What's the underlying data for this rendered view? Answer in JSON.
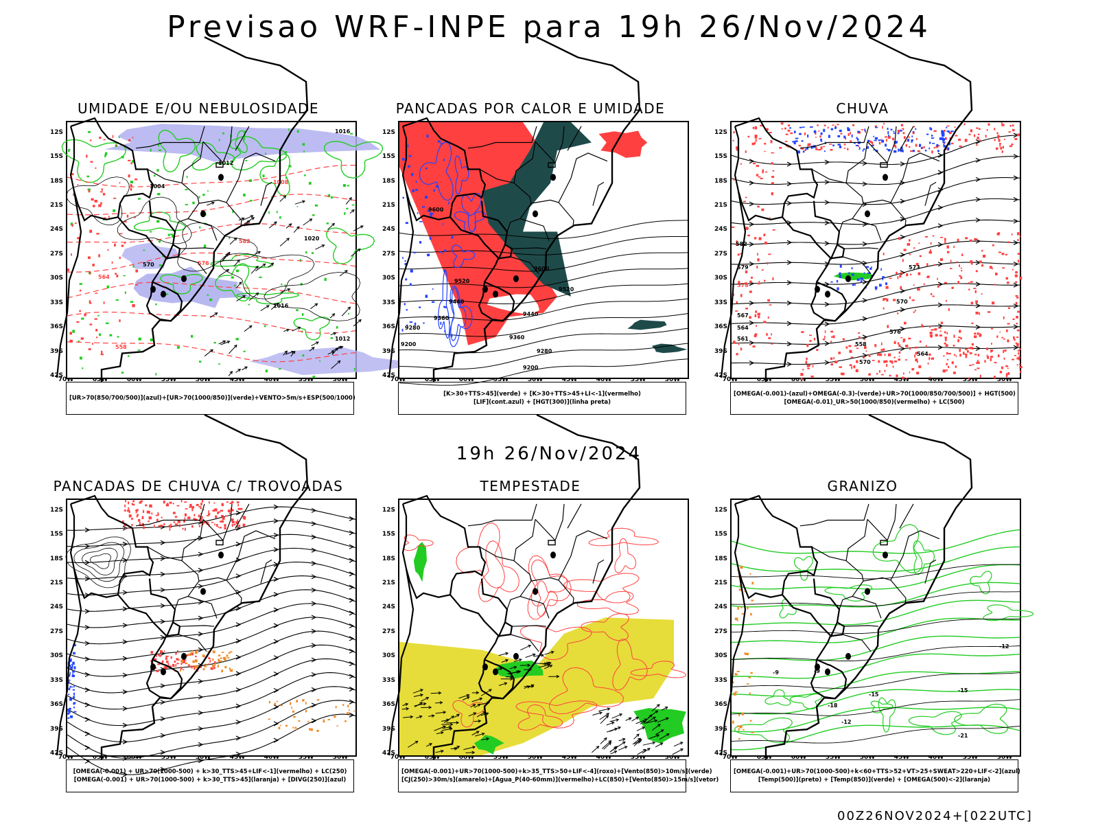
{
  "header": {
    "title": "Previsao WRF-INPE  para 19h 26/Nov/2024",
    "subtitle": "19h 26/Nov/2024",
    "stamp": "00Z26NOV2024+[022UTC]"
  },
  "axes": {
    "lat_labels": [
      "12S",
      "15S",
      "18S",
      "21S",
      "24S",
      "27S",
      "30S",
      "33S",
      "36S",
      "39S",
      "42S"
    ],
    "lon_labels": [
      "70W",
      "65W",
      "60W",
      "55W",
      "50W",
      "45W",
      "40W",
      "35W",
      "30W"
    ]
  },
  "colors": {
    "green": "#22cc22",
    "red": "#ff4040",
    "blue": "#2244ff",
    "lavender": "#b0b0f0",
    "darkteal": "#1f4a4a",
    "yellow": "#e6dd3a",
    "orange": "#f08a24",
    "black": "#000000"
  },
  "panels": [
    {
      "id": "umidade",
      "title": "UMIDADE E/OU NEBULOSIDADE",
      "legend": [
        "[UR>70(850/700/500)](azul)+[UR>70(1000/850)](verde)+VENTO>5m/s+ESP(500/1000)"
      ],
      "contour_labels": [
        "1016",
        "1012",
        "1008",
        "1004",
        "1020",
        "570",
        "576",
        "582",
        "564",
        "558",
        "1012",
        "1016"
      ]
    },
    {
      "id": "pancadas",
      "title": "PANCADAS POR CALOR E UMIDADE",
      "legend": [
        "[K>30+TTS>45](verde) + [K>30+TTS>45+LI<-1](vermelho)",
        "[LIF](cont.azul) + [HGT(300)](linha preta)"
      ],
      "contour_labels": [
        "9600",
        "9520",
        "9440",
        "9360",
        "9280",
        "9200",
        "9600",
        "9520",
        "9440",
        "9360",
        "9280",
        "9200"
      ]
    },
    {
      "id": "chuva",
      "title": "CHUVA",
      "legend": [
        "[OMEGA(-0.001)-(azul)+OMEGA(-0.3)-(verde)+UR>70(1000/850/700/500)] + HGT(500)",
        "[OMEGA(-0.01)_UR>50(1000/850)(vermelho) + LC(500)"
      ],
      "contour_labels": [
        "582",
        "579",
        "576",
        "573",
        "570",
        "567",
        "564",
        "561",
        "558",
        "576",
        "570",
        "564"
      ]
    },
    {
      "id": "trovoadas",
      "title": "PANCADAS DE CHUVA C/ TROVOADAS",
      "legend": [
        "[OMEGA(-0.001) + UR>70(1000-500) + k>30_TTS>45+LIF<-1](vermelho) + LC(250)",
        "[OMEGA(-0.001) + UR>70(1000-500) + k>30_TTS>45](laranja) + [DIVG(250)](azul)"
      ],
      "contour_labels": []
    },
    {
      "id": "tempestade",
      "title": "TEMPESTADE",
      "legend": [
        "[OMEGA(-0.001)+UR>70(1000-500)+k>35_TTS>50+LIF<-4](roxo)+[Vento(850)>10m/s](verde)",
        "[CJ(250)>30m/s](amarelo)+[Agua_P(40-60mm)](vermelho)+LC(850)+[Vento(850)>15m/s](vetor)"
      ],
      "contour_labels": []
    },
    {
      "id": "granizo",
      "title": "GRANIZO",
      "legend": [
        "[OMEGA(-0.001)+UR>70(1000-500)+k<60+TTS>52+VT>25+SWEAT>220+LIF<-2](azul)",
        "[Temp(500)](preto) + [Temp(850)](verde) + [OMEGA(500)<-2](laranja)"
      ],
      "contour_labels": [
        "-9",
        "-12",
        "-15",
        "-18",
        "-21",
        "-12",
        "-15",
        "-9"
      ]
    }
  ]
}
